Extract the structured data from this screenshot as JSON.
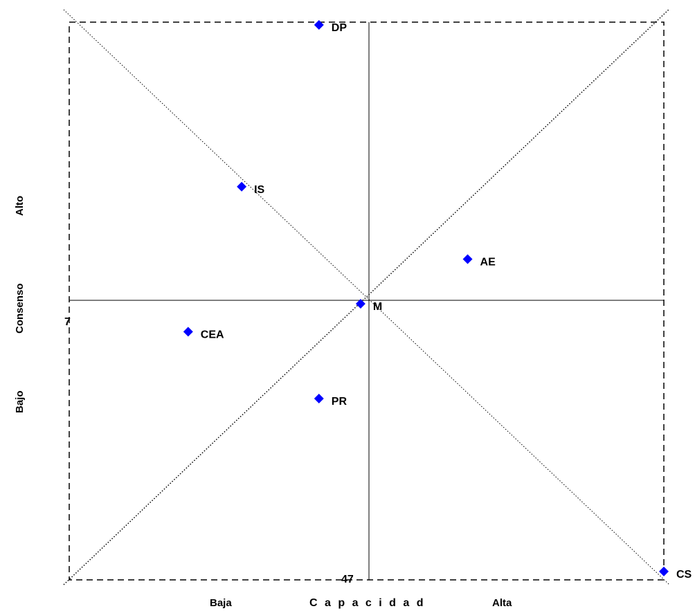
{
  "chart_data": {
    "type": "scatter",
    "xlabel": "C a p a c i d a d",
    "ylabel": "Consenso",
    "x_low_label": "Baja",
    "x_high_label": "Alta",
    "y_low_label": "Bajo",
    "y_high_label": "Alto",
    "x_tick_label": "47",
    "y_tick_label": "7",
    "xlim": [
      0,
      100
    ],
    "ylim": [
      0,
      100
    ],
    "grid": false,
    "point_color": "#0000ff",
    "points": [
      {
        "label": "DP",
        "x": 42,
        "y": 99.5
      },
      {
        "label": "IS",
        "x": 29,
        "y": 70.5
      },
      {
        "label": "AE",
        "x": 67,
        "y": 57.5
      },
      {
        "label": "M",
        "x": 49,
        "y": 49.5
      },
      {
        "label": "CEA",
        "x": 20,
        "y": 44.5
      },
      {
        "label": "PR",
        "x": 42,
        "y": 32.5
      },
      {
        "label": "CS",
        "x": 100,
        "y": 1.5
      }
    ]
  }
}
